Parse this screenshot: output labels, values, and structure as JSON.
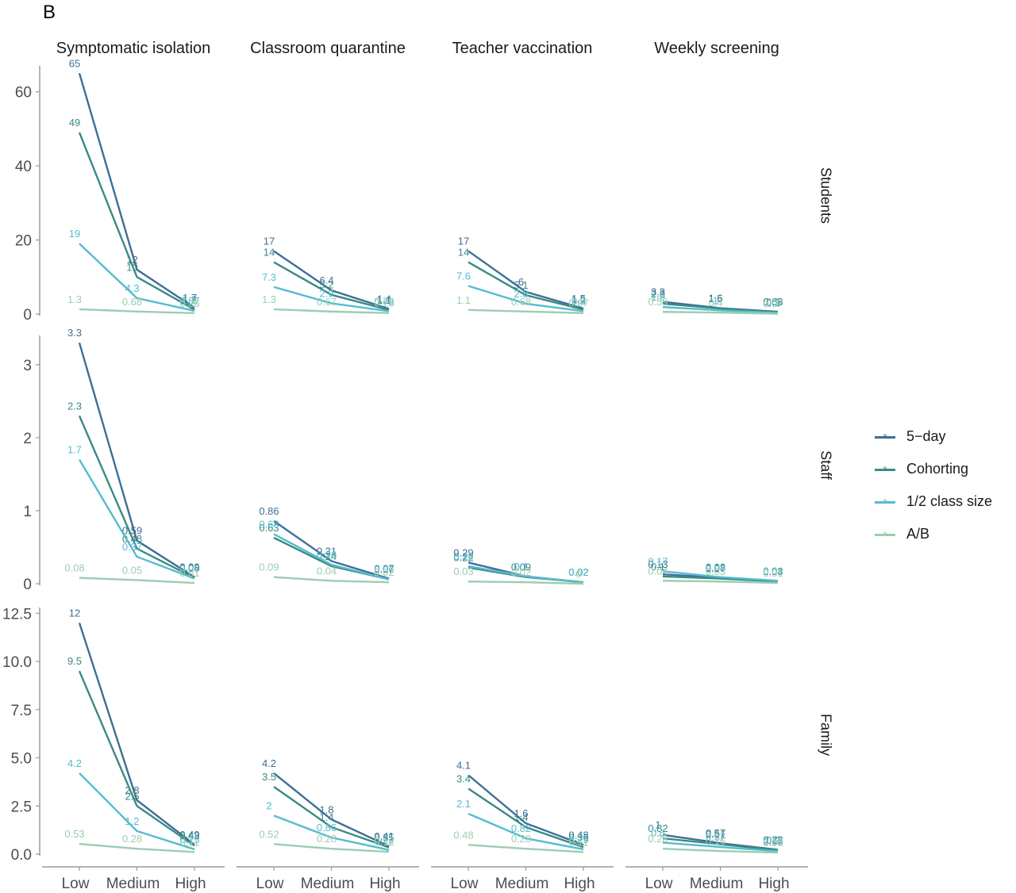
{
  "panel_label": "B",
  "colors": {
    "5-day": "#3e6f96",
    "Cohorting": "#3a8a84",
    "1/2 class size": "#55bcd0",
    "A/B": "#9ccdb0",
    "axis": "#9a9a9a",
    "tick_text": "#4d4d4d"
  },
  "legend": [
    {
      "name": "5−day",
      "key_glyph": "a",
      "color_key": "5-day"
    },
    {
      "name": "Cohorting",
      "key_glyph": "a",
      "color_key": "Cohorting"
    },
    {
      "name": "1/2 class size",
      "key_glyph": "a",
      "color_key": "1/2 class size"
    },
    {
      "name": "A/B",
      "key_glyph": "a",
      "color_key": "A/B"
    }
  ],
  "chart_data": {
    "type": "line",
    "categories": [
      "Low",
      "Medium",
      "High"
    ],
    "columns": [
      "Symptomatic isolation",
      "Classroom quarantine",
      "Teacher vaccination",
      "Weekly screening"
    ],
    "rows": [
      {
        "name": "Students",
        "ylim": [
          0,
          67
        ],
        "ticks": [
          {
            "v": 0,
            "t": "0"
          },
          {
            "v": 20,
            "t": "20"
          },
          {
            "v": 40,
            "t": "40"
          },
          {
            "v": 60,
            "t": "60"
          }
        ],
        "panels": [
          {
            "series": [
              {
                "name": "5-day",
                "values": [
                  65,
                  12,
                  1.7
                ]
              },
              {
                "name": "Cohorting",
                "values": [
                  49,
                  10,
                  1.2
                ]
              },
              {
                "name": "1/2 class size",
                "values": [
                  19,
                  4.3,
                  0.87
                ]
              },
              {
                "name": "A/B",
                "values": [
                  1.3,
                  0.68,
                  0.26
                ]
              }
            ]
          },
          {
            "series": [
              {
                "name": "5-day",
                "values": [
                  17,
                  6.4,
                  1.4
                ]
              },
              {
                "name": "Cohorting",
                "values": [
                  14,
                  5.2,
                  1.1
                ]
              },
              {
                "name": "1/2 class size",
                "values": [
                  7.3,
                  2.9,
                  0.79
                ]
              },
              {
                "name": "A/B",
                "values": [
                  1.3,
                  0.67,
                  0.28
                ]
              }
            ]
          },
          {
            "series": [
              {
                "name": "5-day",
                "values": [
                  17,
                  6,
                  1.5
                ]
              },
              {
                "name": "Cohorting",
                "values": [
                  14,
                  5.1,
                  1.2
                ]
              },
              {
                "name": "1/2 class size",
                "values": [
                  7.6,
                  2.8,
                  0.8
                ]
              },
              {
                "name": "A/B",
                "values": [
                  1.1,
                  0.68,
                  0.27
                ]
              }
            ]
          },
          {
            "series": [
              {
                "name": "5-day",
                "values": [
                  3.3,
                  1.6,
                  0.63
                ]
              },
              {
                "name": "Cohorting",
                "values": [
                  2.8,
                  1.5,
                  0.5
                ]
              },
              {
                "name": "1/2 class size",
                "values": [
                  1.9,
                  1.0,
                  0.3
                ]
              },
              {
                "name": "A/B",
                "values": [
                  0.59,
                  0.4,
                  0.07
                ]
              }
            ]
          }
        ]
      },
      {
        "name": "Staff",
        "ylim": [
          0,
          3.4
        ],
        "ticks": [
          {
            "v": 0,
            "t": "0"
          },
          {
            "v": 1,
            "t": "1"
          },
          {
            "v": 2,
            "t": "2"
          },
          {
            "v": 3,
            "t": "3"
          }
        ],
        "panels": [
          {
            "series": [
              {
                "name": "5-day",
                "values": [
                  3.3,
                  0.59,
                  0.09
                ]
              },
              {
                "name": "Cohorting",
                "values": [
                  2.3,
                  0.48,
                  0.08
                ]
              },
              {
                "name": "1/2 class size",
                "values": [
                  1.7,
                  0.37,
                  0.07
                ]
              },
              {
                "name": "A/B",
                "values": [
                  0.08,
                  0.05,
                  0.01
                ]
              }
            ]
          },
          {
            "series": [
              {
                "name": "5-day",
                "values": [
                  0.86,
                  0.31,
                  0.07
                ]
              },
              {
                "name": "Cohorting",
                "values": [
                  0.63,
                  0.24,
                  0.06
                ]
              },
              {
                "name": "1/2 class size",
                "values": [
                  0.68,
                  0.26,
                  0.06
                ]
              },
              {
                "name": "A/B",
                "values": [
                  0.09,
                  0.04,
                  0.02
                ]
              }
            ]
          },
          {
            "series": [
              {
                "name": "5-day",
                "values": [
                  0.29,
                  0.1,
                  0.02
                ]
              },
              {
                "name": "Cohorting",
                "values": [
                  0.22,
                  0.09,
                  0.02
                ]
              },
              {
                "name": "1/2 class size",
                "values": [
                  0.24,
                  0.1,
                  0.02
                ]
              },
              {
                "name": "A/B",
                "values": [
                  0.03,
                  0.02,
                  0.0
                ]
              }
            ]
          },
          {
            "series": [
              {
                "name": "5-day",
                "values": [
                  0.13,
                  0.08,
                  0.03
                ]
              },
              {
                "name": "Cohorting",
                "values": [
                  0.1,
                  0.07,
                  0.03
                ]
              },
              {
                "name": "1/2 class size",
                "values": [
                  0.17,
                  0.09,
                  0.04
                ]
              },
              {
                "name": "A/B",
                "values": [
                  0.04,
                  0.03,
                  0.01
                ]
              }
            ]
          }
        ]
      },
      {
        "name": "Family",
        "ylim": [
          0,
          12.8
        ],
        "ticks": [
          {
            "v": 0,
            "t": "0.0"
          },
          {
            "v": 2.5,
            "t": "2.5"
          },
          {
            "v": 5,
            "t": "5.0"
          },
          {
            "v": 7.5,
            "t": "7.5"
          },
          {
            "v": 10,
            "t": "10.0"
          },
          {
            "v": 12.5,
            "t": "12.5"
          }
        ],
        "panels": [
          {
            "series": [
              {
                "name": "5-day",
                "values": [
                  12,
                  2.8,
                  0.49
                ]
              },
              {
                "name": "Cohorting",
                "values": [
                  9.5,
                  2.5,
                  0.43
                ]
              },
              {
                "name": "1/2 class size",
                "values": [
                  4.2,
                  1.2,
                  0.25
                ]
              },
              {
                "name": "A/B",
                "values": [
                  0.53,
                  0.28,
                  0.11
                ]
              }
            ]
          },
          {
            "series": [
              {
                "name": "5-day",
                "values": [
                  4.2,
                  1.8,
                  0.41
                ]
              },
              {
                "name": "Cohorting",
                "values": [
                  3.5,
                  1.4,
                  0.35
                ]
              },
              {
                "name": "1/2 class size",
                "values": [
                  2,
                  0.86,
                  0.22
                ]
              },
              {
                "name": "A/B",
                "values": [
                  0.52,
                  0.28,
                  0.12
                ]
              }
            ]
          },
          {
            "series": [
              {
                "name": "5-day",
                "values": [
                  4.1,
                  1.6,
                  0.48
                ]
              },
              {
                "name": "Cohorting",
                "values": [
                  3.4,
                  1.4,
                  0.36
                ]
              },
              {
                "name": "1/2 class size",
                "values": [
                  2.1,
                  0.82,
                  0.25
                ]
              },
              {
                "name": "A/B",
                "values": [
                  0.48,
                  0.28,
                  0.11
                ]
              }
            ]
          },
          {
            "series": [
              {
                "name": "5-day",
                "values": [
                  1,
                  0.57,
                  0.23
                ]
              },
              {
                "name": "Cohorting",
                "values": [
                  0.82,
                  0.51,
                  0.2
                ]
              },
              {
                "name": "1/2 class size",
                "values": [
                  0.6,
                  0.37,
                  0.15
                ]
              },
              {
                "name": "A/B",
                "values": [
                  0.28,
                  0.16,
                  0.08
                ]
              }
            ]
          }
        ]
      }
    ]
  }
}
